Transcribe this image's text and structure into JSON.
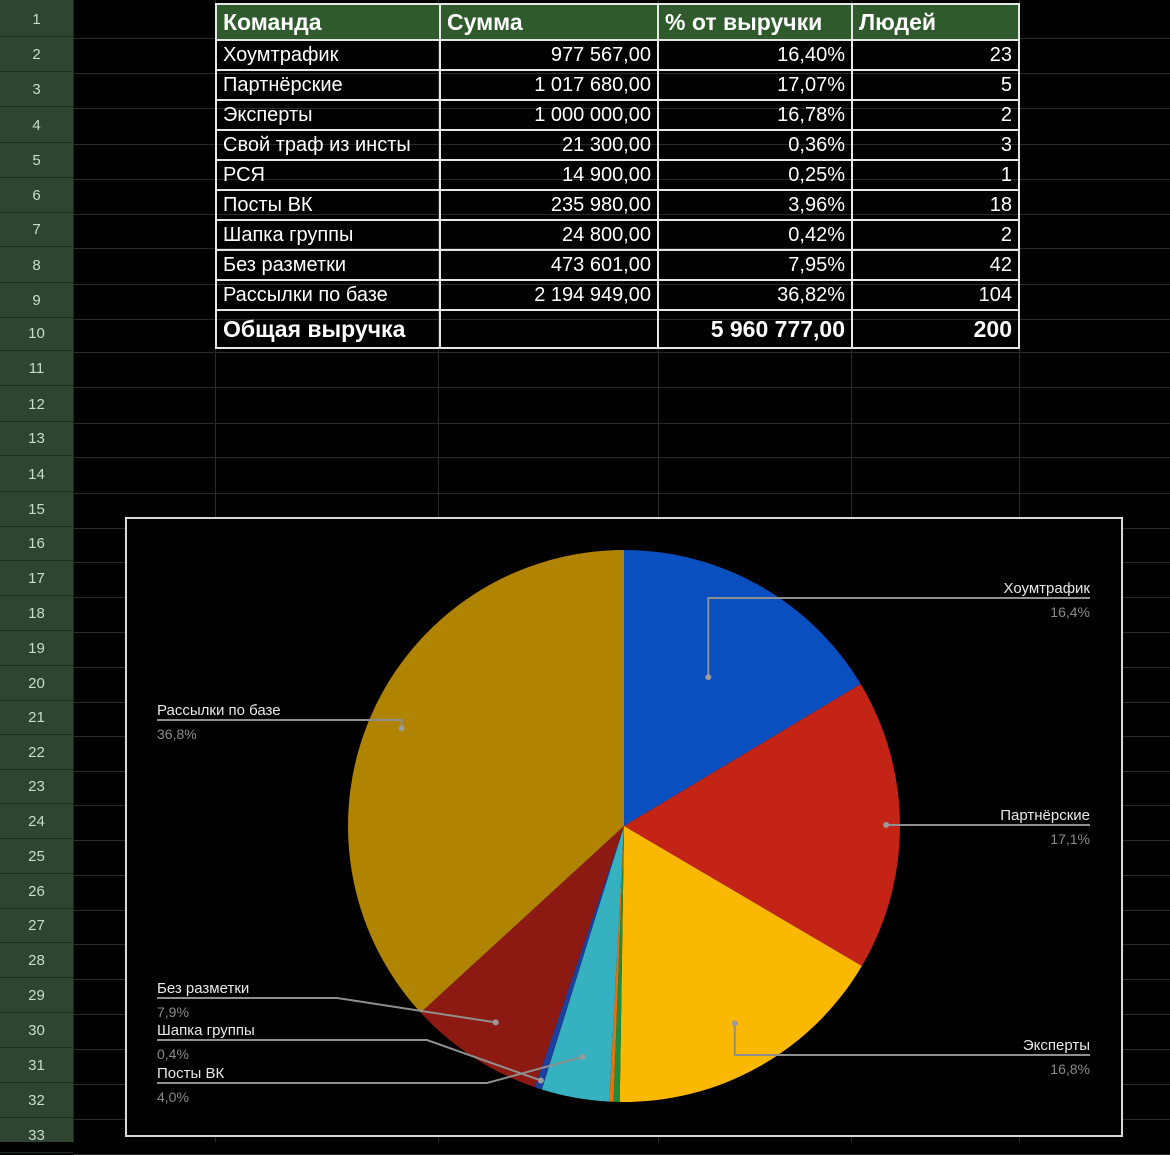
{
  "rows": [
    "1",
    "2",
    "3",
    "4",
    "5",
    "6",
    "7",
    "8",
    "9",
    "10",
    "11",
    "12",
    "13",
    "14",
    "15",
    "16",
    "17",
    "18",
    "19",
    "20",
    "21",
    "22",
    "23",
    "24",
    "25",
    "26",
    "27",
    "28",
    "29",
    "30",
    "31",
    "32",
    "33"
  ],
  "table": {
    "headers": [
      "Команда",
      "Сумма",
      "% от выручки",
      "Людей"
    ],
    "rows": [
      [
        "Хоумтрафик",
        "977 567,00",
        "16,40%",
        "23"
      ],
      [
        "Партнёрские",
        "1 017 680,00",
        "17,07%",
        "5"
      ],
      [
        "Эксперты",
        "1 000 000,00",
        "16,78%",
        "2"
      ],
      [
        "Свой траф из инсты",
        "21 300,00",
        "0,36%",
        "3"
      ],
      [
        "РСЯ",
        "14 900,00",
        "0,25%",
        "1"
      ],
      [
        "Посты ВК",
        "235 980,00",
        "3,96%",
        "18"
      ],
      [
        "Шапка группы",
        "24 800,00",
        "0,42%",
        "2"
      ],
      [
        "Без разметки",
        "473 601,00",
        "7,95%",
        "42"
      ],
      [
        "Рассылки по базе",
        "2 194 949,00",
        "36,82%",
        "104"
      ]
    ],
    "total": {
      "label": "Общая выручка",
      "amount": "5 960 777,00",
      "people": "200"
    }
  },
  "chart_data": {
    "type": "pie",
    "slices": [
      {
        "name": "Хоумтрафик",
        "value": 16.4,
        "label": "16,4%",
        "color": "#0a4fc0",
        "show_label": true
      },
      {
        "name": "Партнёрские",
        "value": 17.07,
        "label": "17,1%",
        "color": "#c42416",
        "show_label": true
      },
      {
        "name": "Эксперты",
        "value": 16.78,
        "label": "16,8%",
        "color": "#fbb800",
        "show_label": true
      },
      {
        "name": "Свой траф из инсты",
        "value": 0.36,
        "label": "",
        "color": "#1e8e3e",
        "show_label": false
      },
      {
        "name": "РСЯ",
        "value": 0.25,
        "label": "",
        "color": "#e8710a",
        "show_label": false
      },
      {
        "name": "Посты ВК",
        "value": 3.96,
        "label": "4,0%",
        "color": "#35b1bf",
        "show_label": true
      },
      {
        "name": "Шапка группы",
        "value": 0.42,
        "label": "0,4%",
        "color": "#1d3f9e",
        "show_label": true
      },
      {
        "name": "Без разметки",
        "value": 7.95,
        "label": "7,9%",
        "color": "#8c1a12",
        "show_label": true
      },
      {
        "name": "Рассылки по базе",
        "value": 36.82,
        "label": "36,8%",
        "color": "#b08300",
        "show_label": true
      }
    ]
  }
}
